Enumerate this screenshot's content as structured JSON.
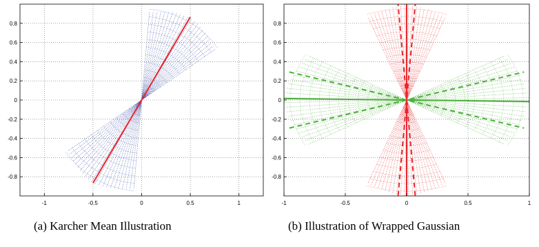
{
  "chart_data": [
    {
      "type": "line",
      "caption": "(a)  Karcher Mean Illustration",
      "xlim": [
        -1.25,
        1.25
      ],
      "ylim": [
        -1,
        1
      ],
      "x_ticks": [
        -1,
        -0.5,
        0,
        0.5,
        1
      ],
      "x_tick_labels": [
        "-1",
        "-0.5",
        "0",
        "0.5",
        "1"
      ],
      "y_ticks": [
        -0.8,
        -0.6,
        -0.4,
        -0.2,
        0,
        0.2,
        0.4,
        0.6,
        0.8
      ],
      "y_tick_labels": [
        "-0.8",
        "-0.6",
        "-0.4",
        "-0.2",
        "0",
        "0.2",
        "0.4",
        "0.6",
        "0.8"
      ],
      "grid": true,
      "series": [
        {
          "style": "fan-dotted",
          "color": "#2b3fa0",
          "center_angle_deg": 60,
          "spread_deg": 25,
          "radius": 1
        },
        {
          "style": "solid-line",
          "color": "#e8262b",
          "x": [
            -0.5,
            0.5
          ],
          "y": [
            -0.866,
            0.866
          ]
        }
      ]
    },
    {
      "type": "line",
      "caption": "(b)  Illustration of Wrapped Gaussian",
      "xlim": [
        -1,
        1
      ],
      "ylim": [
        -1,
        1
      ],
      "x_ticks": [
        -1,
        -0.5,
        0,
        0.5,
        1
      ],
      "x_tick_labels": [
        "-1",
        "-0.5",
        "0",
        "0.5",
        "1"
      ],
      "y_ticks": [
        -0.8,
        -0.6,
        -0.4,
        -0.2,
        0,
        0.2,
        0.4,
        0.6,
        0.8
      ],
      "y_tick_labels": [
        "-0.8",
        "-0.6",
        "-0.4",
        "-0.2",
        "0",
        "0.2",
        "0.4",
        "0.6",
        "0.8"
      ],
      "grid": true,
      "series": [
        {
          "style": "fan-dotted",
          "color": "#4caf3a",
          "center_angle_deg": 0,
          "spread_deg": 30,
          "radius": 1
        },
        {
          "style": "fan-dotted",
          "color": "#e8262b",
          "center_angle_deg": 90,
          "spread_deg": 20,
          "radius": 1
        },
        {
          "style": "solid-line",
          "color": "#4caf3a",
          "x": [
            -1,
            1
          ],
          "y": [
            0.015,
            -0.015
          ]
        },
        {
          "style": "solid-line",
          "color": "#e8262b",
          "x": [
            0,
            0
          ],
          "y": [
            -1,
            1
          ]
        },
        {
          "style": "dashed-line",
          "color": "#4caf3a",
          "angle_deg": 17,
          "radius": 1
        },
        {
          "style": "dashed-line",
          "color": "#4caf3a",
          "angle_deg": -17,
          "radius": 1
        },
        {
          "style": "dashed-line",
          "color": "#e8262b",
          "angle_deg": 86,
          "radius": 1
        },
        {
          "style": "dashed-line",
          "color": "#e8262b",
          "angle_deg": 94,
          "radius": 1
        }
      ]
    }
  ]
}
